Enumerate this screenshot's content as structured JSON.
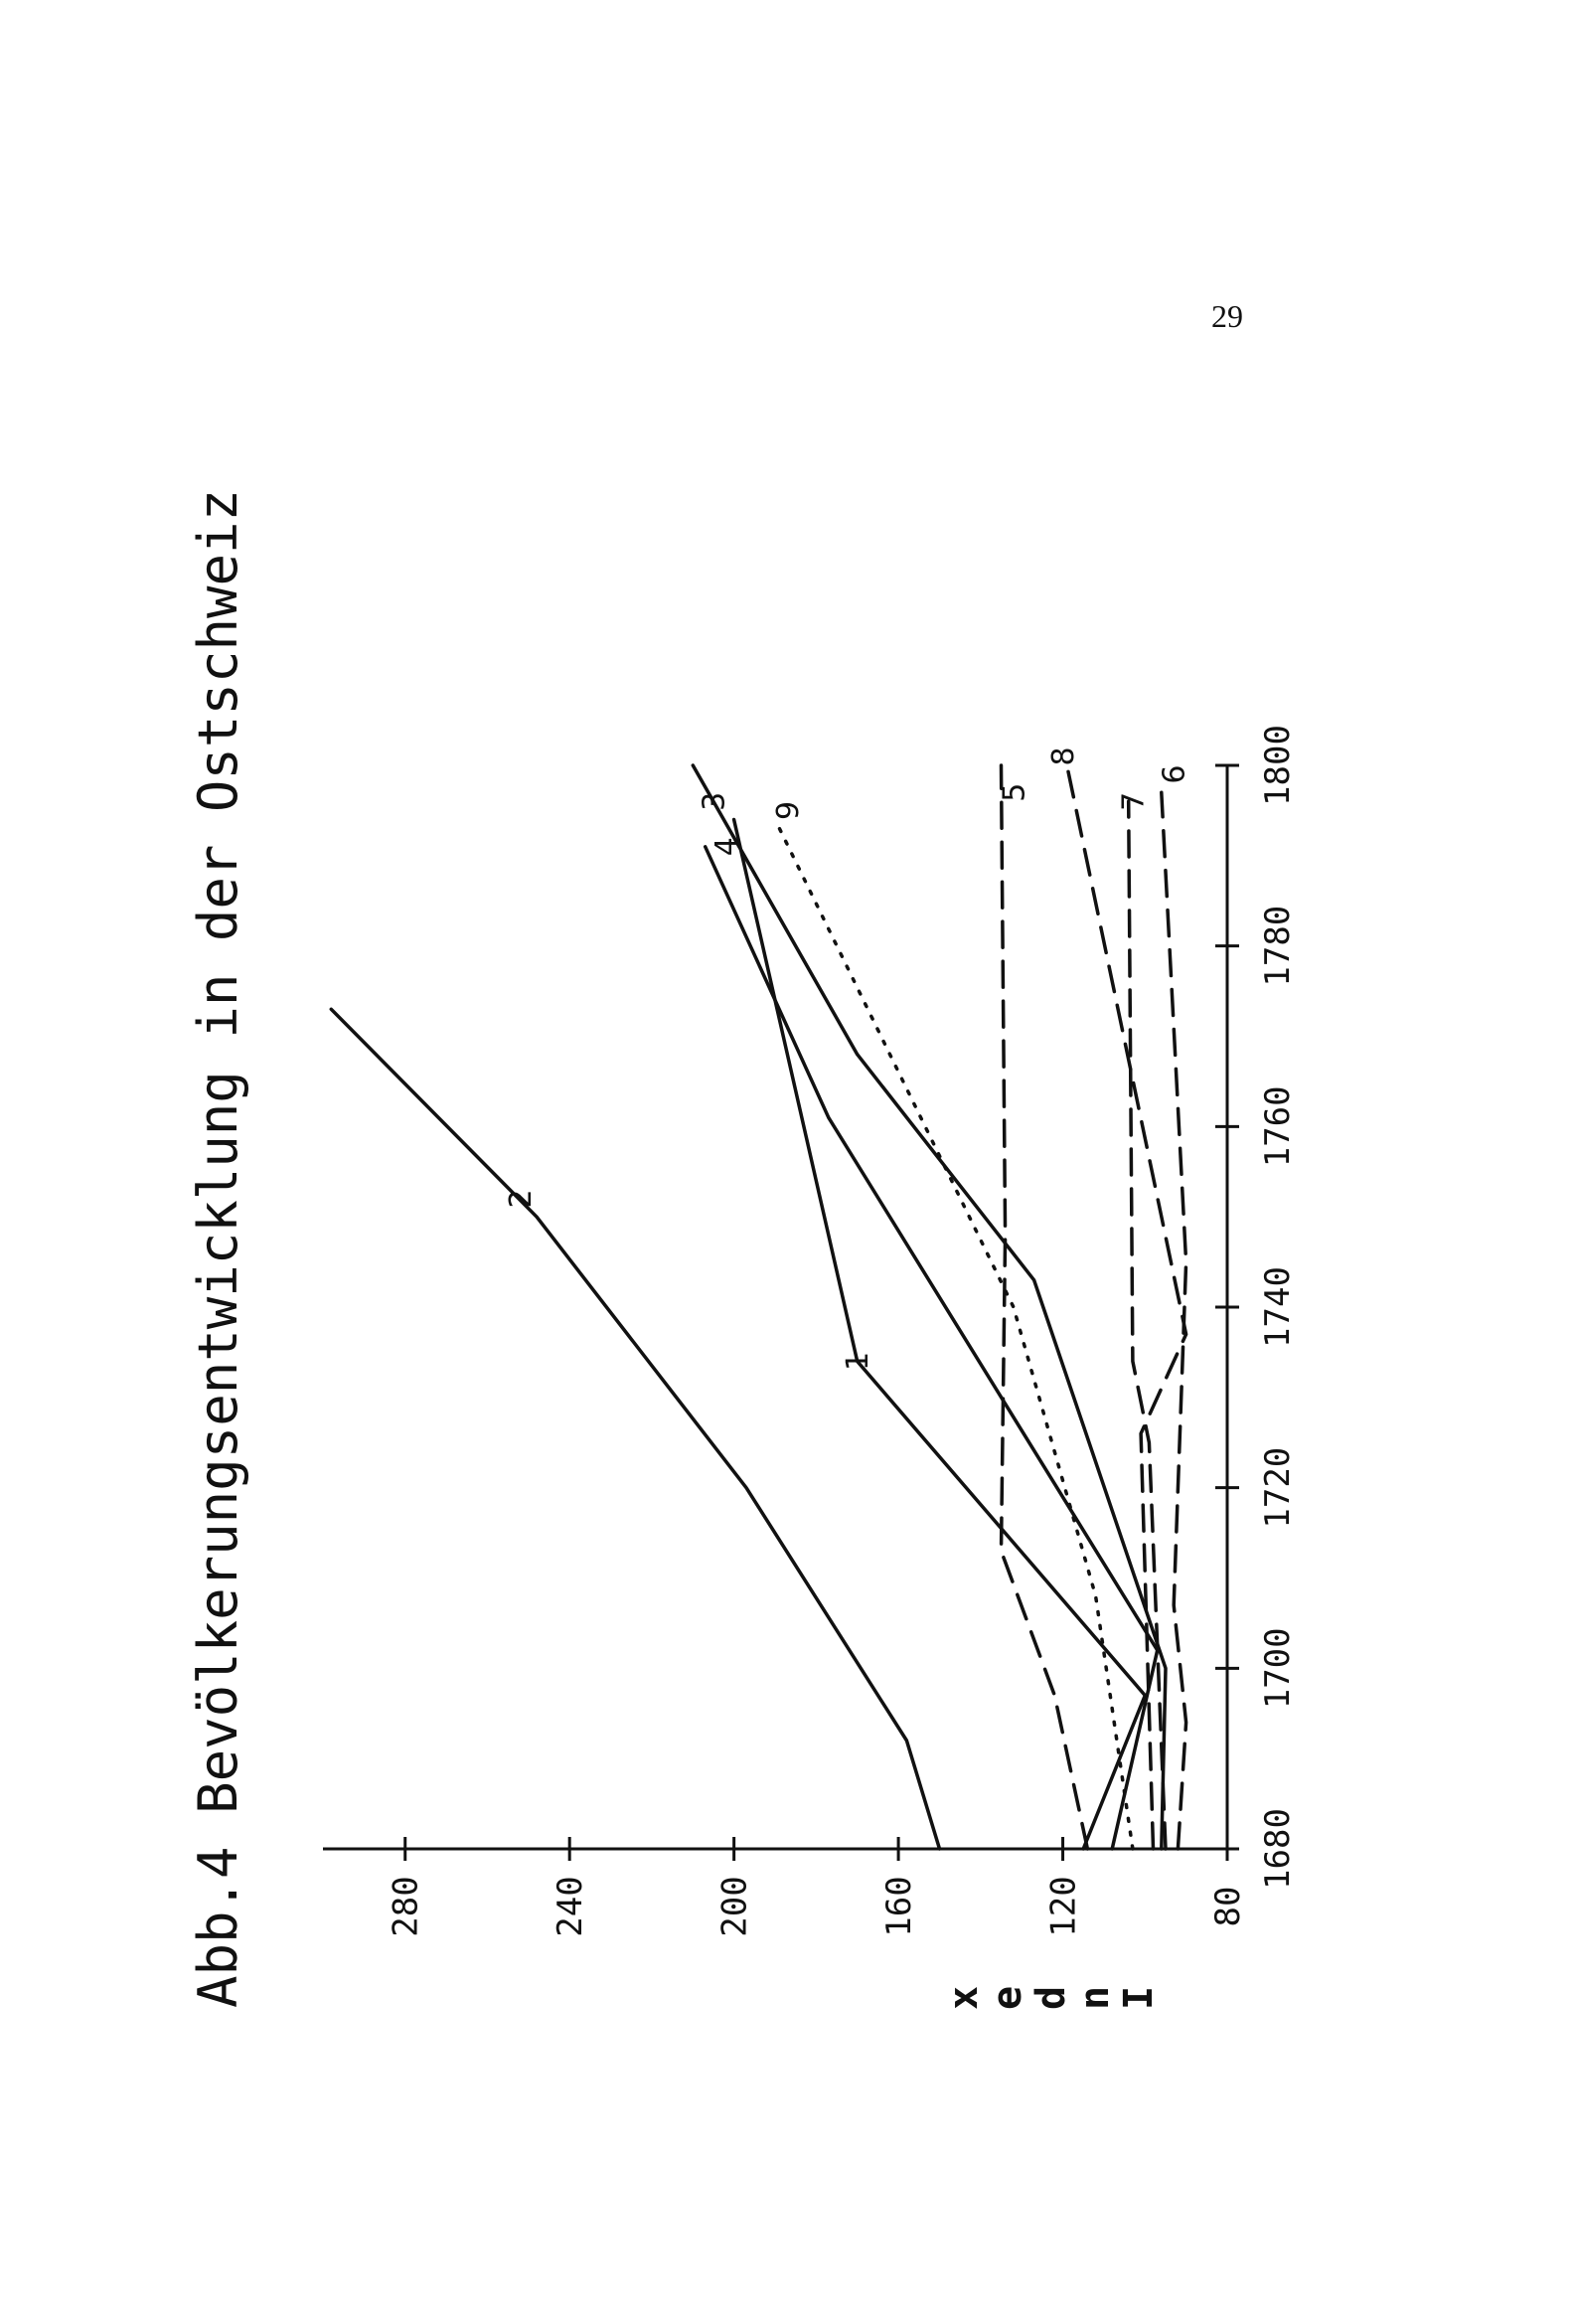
{
  "page": {
    "number": "29"
  },
  "chart_data": {
    "type": "line",
    "title": "Abb.4 Bevölkerungsentwicklung in der Ostschweiz",
    "xlabel": "",
    "ylabel": "Index",
    "ylabel_letters": [
      "I",
      "n",
      "d",
      "e",
      "x"
    ],
    "xlim": [
      1680,
      1800
    ],
    "ylim": [
      80,
      300
    ],
    "x_ticks": [
      1680,
      1700,
      1720,
      1740,
      1760,
      1780,
      1800
    ],
    "y_ticks": [
      80,
      120,
      160,
      200,
      240,
      280
    ],
    "x_tick_labels": [
      "1680",
      "1700",
      "1720",
      "1740",
      "1760",
      "1780",
      "1800"
    ],
    "y_tick_labels": [
      "80",
      "120",
      "160",
      "200",
      "240",
      "280"
    ],
    "grid": false,
    "legend": "none",
    "orientation": "rotated-90-counterclockwise",
    "series": [
      {
        "label": "1",
        "style": "solid",
        "label_at": [
          1734,
          170
        ],
        "x": [
          1680,
          1697,
          1734,
          1794
        ],
        "y": [
          115,
          100,
          170,
          200
        ]
      },
      {
        "label": "2",
        "style": "solid",
        "label_at": [
          1752,
          252
        ],
        "x": [
          1680,
          1692,
          1720,
          1750,
          1773
        ],
        "y": [
          150,
          158,
          197,
          248,
          298
        ]
      },
      {
        "label": "3",
        "style": "solid",
        "label_at": [
          1796,
          205
        ],
        "x": [
          1680,
          1700,
          1743,
          1768,
          1800
        ],
        "y": [
          96,
          95,
          127,
          170,
          210
        ]
      },
      {
        "label": "4",
        "style": "solid",
        "label_at": [
          1791,
          202
        ],
        "x": [
          1680,
          1702,
          1761,
          1791
        ],
        "y": [
          108,
          97,
          177,
          207
        ]
      },
      {
        "label": "5",
        "style": "dashed",
        "label_at": [
          1797,
          132
        ],
        "x": [
          1680,
          1697,
          1713,
          1748,
          1800
        ],
        "y": [
          114,
          122,
          135,
          134,
          135
        ]
      },
      {
        "label": "6",
        "style": "dashed",
        "label_at": [
          1799,
          93
        ],
        "x": [
          1680,
          1694,
          1707,
          1745,
          1797
        ],
        "y": [
          92,
          90,
          93,
          90,
          96
        ]
      },
      {
        "label": "7",
        "style": "dashed",
        "label_at": [
          1796,
          103
        ],
        "x": [
          1680,
          1725,
          1734,
          1796
        ],
        "y": [
          95,
          99,
          103,
          104
        ]
      },
      {
        "label": "8",
        "style": "dashed",
        "label_at": [
          1801,
          120
        ],
        "x": [
          1680,
          1726,
          1737,
          1800
        ],
        "y": [
          98,
          101,
          90,
          119
        ]
      },
      {
        "label": "9",
        "style": "dotted",
        "label_at": [
          1795,
          187
        ],
        "x": [
          1680,
          1708,
          1740,
          1794
        ],
        "y": [
          103,
          112,
          132,
          190
        ]
      }
    ]
  }
}
